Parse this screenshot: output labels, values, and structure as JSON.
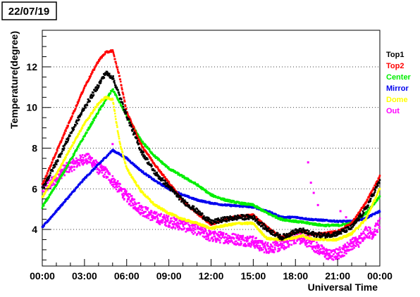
{
  "chart_data": {
    "type": "scatter",
    "title": "22/07/19",
    "xlabel": "Universal Time",
    "ylabel": "Temperature(degree)",
    "xlim": [
      0,
      24
    ],
    "ylim": [
      2.2,
      13.8
    ],
    "x_tick_labels": [
      "00:00",
      "03:00",
      "06:00",
      "09:00",
      "12:00",
      "15:00",
      "18:00",
      "21:00",
      "00:00"
    ],
    "y_tick_labels": [
      "4",
      "6",
      "8",
      "10",
      "12"
    ],
    "y_ticks": [
      4,
      6,
      8,
      10,
      12
    ],
    "grid": "horizontal dotted",
    "legend_position": "right",
    "series": [
      {
        "name": "Top1",
        "color": "#000000",
        "x": [
          0,
          1,
          2,
          3,
          4,
          4.5,
          5,
          6,
          7,
          8,
          9,
          10,
          11,
          12,
          13,
          14,
          15,
          15.5,
          16,
          17,
          18,
          18.5,
          19,
          20,
          21,
          22,
          23,
          24
        ],
        "y": [
          6.0,
          7.3,
          8.7,
          10.0,
          11.1,
          11.7,
          11.5,
          9.6,
          7.9,
          6.8,
          6.1,
          5.4,
          4.9,
          4.35,
          4.5,
          4.6,
          4.6,
          4.3,
          4.0,
          3.6,
          3.9,
          3.95,
          3.8,
          3.7,
          3.8,
          4.1,
          5.0,
          6.4
        ]
      },
      {
        "name": "Top2",
        "color": "#ff0000",
        "x": [
          0,
          1,
          2,
          3,
          4,
          4.5,
          5,
          5.5,
          6,
          7,
          8,
          9,
          10,
          11,
          12,
          13,
          14,
          15,
          15.5,
          16,
          17,
          18,
          18.5,
          19,
          20,
          21,
          22,
          23,
          24
        ],
        "y": [
          6.2,
          7.8,
          9.4,
          11.0,
          12.3,
          12.7,
          12.8,
          11.5,
          9.8,
          8.2,
          7.2,
          6.3,
          5.4,
          4.8,
          4.25,
          4.5,
          4.65,
          4.7,
          4.4,
          4.1,
          3.6,
          3.85,
          3.9,
          3.75,
          3.8,
          3.9,
          4.3,
          5.3,
          6.6
        ]
      },
      {
        "name": "Center",
        "color": "#00ee00",
        "x": [
          0,
          1,
          2,
          3,
          4,
          5,
          6,
          7,
          8,
          9,
          10,
          11,
          12,
          13,
          14,
          15,
          16,
          17,
          18,
          19,
          20,
          21,
          22,
          23,
          24
        ],
        "y": [
          5.1,
          6.2,
          7.4,
          8.6,
          9.8,
          10.9,
          9.6,
          8.4,
          7.6,
          7.0,
          6.6,
          6.2,
          5.7,
          5.45,
          5.3,
          5.2,
          4.8,
          4.5,
          4.4,
          4.3,
          4.2,
          4.2,
          4.3,
          4.8,
          5.6
        ]
      },
      {
        "name": "Mirror",
        "color": "#0000ee",
        "x": [
          0,
          1,
          2,
          3,
          4,
          5,
          6,
          7,
          8,
          9,
          10,
          11,
          12,
          13,
          14,
          15,
          16,
          17,
          18,
          19,
          20,
          21,
          22,
          23,
          24
        ],
        "y": [
          4.1,
          4.9,
          5.7,
          6.5,
          7.2,
          7.9,
          7.5,
          6.9,
          6.4,
          6.0,
          5.7,
          5.45,
          5.3,
          5.2,
          5.15,
          5.1,
          4.9,
          4.6,
          4.6,
          4.5,
          4.45,
          4.4,
          4.4,
          4.55,
          4.9
        ]
      },
      {
        "name": "Dome",
        "color": "#ffff00",
        "x": [
          0,
          1,
          2,
          3,
          4,
          4.5,
          5,
          5.5,
          6,
          7,
          8,
          9,
          10,
          11,
          12,
          13,
          14,
          15,
          15.5,
          16,
          17,
          18,
          18.5,
          19,
          20,
          21,
          22,
          23,
          24
        ],
        "y": [
          5.6,
          6.7,
          8.0,
          9.2,
          10.2,
          10.5,
          10.4,
          8.3,
          7.0,
          5.9,
          5.2,
          4.8,
          4.5,
          4.3,
          4.05,
          4.2,
          4.3,
          4.3,
          3.9,
          3.55,
          3.5,
          3.6,
          3.7,
          3.55,
          3.5,
          3.5,
          3.8,
          4.5,
          6.0
        ]
      },
      {
        "name": "Out",
        "color": "#ff00ff",
        "x": [
          0,
          0.5,
          1,
          1.5,
          2,
          2.5,
          3,
          3.5,
          4,
          4.5,
          5,
          5.5,
          6,
          6.5,
          7,
          8,
          9,
          10,
          11,
          12,
          13,
          14,
          15,
          15.5,
          16,
          17,
          17.5,
          18,
          18.5,
          19,
          19.5,
          20,
          20.5,
          21,
          21.5,
          22,
          22.5,
          23,
          23.5,
          24
        ],
        "y": [
          6.0,
          6.2,
          6.5,
          6.9,
          7.1,
          7.3,
          7.5,
          7.4,
          7.0,
          6.8,
          6.4,
          6.0,
          5.6,
          5.3,
          5.0,
          4.6,
          4.4,
          4.2,
          4.0,
          3.65,
          3.6,
          3.5,
          3.4,
          3.2,
          3.1,
          3.2,
          3.4,
          3.6,
          3.5,
          3.4,
          3.1,
          2.9,
          2.7,
          2.8,
          3.0,
          3.3,
          3.4,
          3.9,
          3.8,
          4.3
        ],
        "outliers_x": [
          18.9,
          19.1,
          19.3,
          19.6,
          21.2,
          21.6,
          5.0
        ],
        "outliers_y": [
          7.3,
          6.3,
          5.8,
          5.2,
          4.9,
          4.6,
          8.2
        ]
      }
    ]
  }
}
